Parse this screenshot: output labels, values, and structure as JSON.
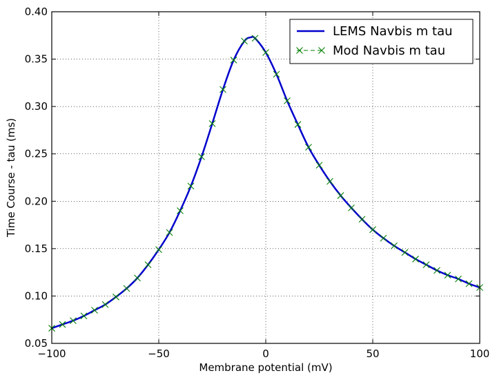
{
  "chart_data": {
    "type": "line",
    "title": "",
    "xlabel": "Membrane potential (mV)",
    "ylabel": "Time Course - tau (ms)",
    "xlim": [
      -100,
      100
    ],
    "ylim": [
      0.05,
      0.4
    ],
    "xticks": [
      -100,
      -50,
      0,
      50,
      100
    ],
    "yticks": [
      0.05,
      0.1,
      0.15,
      0.2,
      0.25,
      0.3,
      0.35,
      0.4
    ],
    "x_tick_labels": [
      "−100",
      "−50",
      "0",
      "50",
      "100"
    ],
    "y_tick_labels": [
      "0.05",
      "0.10",
      "0.15",
      "0.20",
      "0.25",
      "0.30",
      "0.35",
      "0.40"
    ],
    "grid": true,
    "legend_position": "top-right",
    "series": [
      {
        "name": "LEMS Navbis m tau",
        "style": "solid-line",
        "color": "#0000cc",
        "x": [
          -100,
          -95,
          -90,
          -85,
          -80,
          -75,
          -70,
          -65,
          -60,
          -55,
          -50,
          -45,
          -40,
          -35,
          -30,
          -25,
          -20,
          -15,
          -10,
          -7,
          -5,
          0,
          5,
          10,
          15,
          20,
          25,
          30,
          35,
          40,
          45,
          50,
          55,
          60,
          65,
          70,
          75,
          80,
          85,
          90,
          95,
          100
        ],
        "y": [
          0.066,
          0.07,
          0.074,
          0.079,
          0.085,
          0.091,
          0.099,
          0.108,
          0.119,
          0.133,
          0.149,
          0.167,
          0.19,
          0.216,
          0.247,
          0.282,
          0.318,
          0.349,
          0.369,
          0.373,
          0.372,
          0.357,
          0.334,
          0.306,
          0.281,
          0.257,
          0.238,
          0.221,
          0.206,
          0.193,
          0.181,
          0.17,
          0.161,
          0.153,
          0.146,
          0.139,
          0.133,
          0.127,
          0.122,
          0.118,
          0.113,
          0.109
        ]
      },
      {
        "name": "Mod Navbis m tau",
        "style": "x-markers",
        "color": "#008000",
        "x": [
          -100,
          -95,
          -90,
          -85,
          -80,
          -75,
          -70,
          -65,
          -60,
          -55,
          -50,
          -45,
          -40,
          -35,
          -30,
          -25,
          -20,
          -15,
          -10,
          -5,
          0,
          5,
          10,
          15,
          20,
          25,
          30,
          35,
          40,
          45,
          50,
          55,
          60,
          65,
          70,
          75,
          80,
          85,
          90,
          95,
          100
        ],
        "y": [
          0.066,
          0.07,
          0.074,
          0.079,
          0.085,
          0.091,
          0.099,
          0.108,
          0.119,
          0.133,
          0.149,
          0.167,
          0.19,
          0.216,
          0.247,
          0.282,
          0.318,
          0.349,
          0.369,
          0.372,
          0.357,
          0.334,
          0.306,
          0.281,
          0.257,
          0.238,
          0.221,
          0.206,
          0.193,
          0.181,
          0.17,
          0.161,
          0.153,
          0.146,
          0.139,
          0.133,
          0.127,
          0.122,
          0.118,
          0.113,
          0.109
        ]
      }
    ]
  }
}
